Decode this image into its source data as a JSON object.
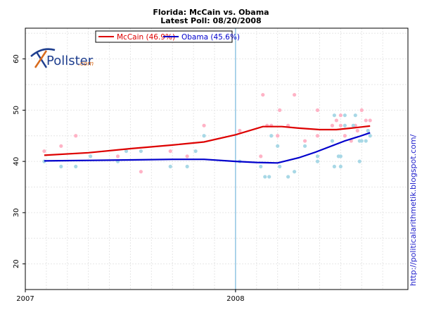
{
  "chart_data": {
    "type": "scatter",
    "title": "Florida: McCain vs. Obama",
    "subtitle": "Latest Poll: 08/20/2008",
    "xlabel": "",
    "ylabel": "",
    "xlim": [
      2007.0,
      2008.82
    ],
    "ylim": [
      15,
      66
    ],
    "yticks": [
      20,
      30,
      40,
      50,
      60
    ],
    "xticks": [
      {
        "value": 2007.0,
        "label": "2007"
      },
      {
        "value": 2008.0,
        "label": "2008"
      }
    ],
    "vlines": [
      2007.0,
      2008.0
    ],
    "grid": true,
    "legend": "top-left",
    "credit": "http://politicalarithmetik.blogspot.com/",
    "logo": {
      "name": "pollster-logo",
      "text": "Pollster",
      "suffix": ".com"
    },
    "series": [
      {
        "name": "McCain (46.9%)",
        "color": "#dd0000",
        "point_color": "#ffb3c6",
        "trend": [
          [
            2007.09,
            41.2
          ],
          [
            2007.3,
            41.7
          ],
          [
            2007.5,
            42.5
          ],
          [
            2007.7,
            43.2
          ],
          [
            2007.85,
            43.8
          ],
          [
            2008.0,
            45.2
          ],
          [
            2008.13,
            46.8
          ],
          [
            2008.22,
            46.8
          ],
          [
            2008.3,
            46.5
          ],
          [
            2008.4,
            46.2
          ],
          [
            2008.48,
            46.2
          ],
          [
            2008.55,
            46.5
          ],
          [
            2008.64,
            46.9
          ]
        ],
        "points": [
          [
            2007.09,
            42
          ],
          [
            2007.17,
            43
          ],
          [
            2007.24,
            45
          ],
          [
            2007.44,
            41
          ],
          [
            2007.55,
            38
          ],
          [
            2007.69,
            42
          ],
          [
            2007.77,
            41
          ],
          [
            2007.85,
            47
          ],
          [
            2008.02,
            46
          ],
          [
            2008.12,
            41
          ],
          [
            2008.13,
            53
          ],
          [
            2008.15,
            47
          ],
          [
            2008.17,
            47
          ],
          [
            2008.2,
            45
          ],
          [
            2008.21,
            50
          ],
          [
            2008.25,
            47
          ],
          [
            2008.28,
            53
          ],
          [
            2008.33,
            44
          ],
          [
            2008.39,
            50
          ],
          [
            2008.39,
            45
          ],
          [
            2008.46,
            47
          ],
          [
            2008.48,
            48
          ],
          [
            2008.5,
            49
          ],
          [
            2008.5,
            47
          ],
          [
            2008.52,
            45
          ],
          [
            2008.55,
            44
          ],
          [
            2008.57,
            47
          ],
          [
            2008.58,
            46
          ],
          [
            2008.6,
            50
          ],
          [
            2008.62,
            48
          ],
          [
            2008.63,
            46
          ],
          [
            2008.64,
            48
          ]
        ]
      },
      {
        "name": "Obama (45.6%)",
        "color": "#0000cc",
        "point_color": "#a8d8e6",
        "trend": [
          [
            2007.09,
            40.1
          ],
          [
            2007.3,
            40.2
          ],
          [
            2007.5,
            40.3
          ],
          [
            2007.7,
            40.4
          ],
          [
            2007.85,
            40.4
          ],
          [
            2008.0,
            40.0
          ],
          [
            2008.1,
            39.8
          ],
          [
            2008.2,
            39.7
          ],
          [
            2008.3,
            40.7
          ],
          [
            2008.38,
            41.8
          ],
          [
            2008.45,
            42.9
          ],
          [
            2008.52,
            44.0
          ],
          [
            2008.59,
            44.9
          ],
          [
            2008.64,
            45.6
          ]
        ],
        "points": [
          [
            2007.09,
            40
          ],
          [
            2007.17,
            39
          ],
          [
            2007.24,
            39
          ],
          [
            2007.31,
            41
          ],
          [
            2007.44,
            40
          ],
          [
            2007.48,
            42
          ],
          [
            2007.55,
            42
          ],
          [
            2007.69,
            39
          ],
          [
            2007.77,
            39
          ],
          [
            2007.81,
            42
          ],
          [
            2007.85,
            45
          ],
          [
            2008.02,
            40
          ],
          [
            2008.12,
            39
          ],
          [
            2008.14,
            37
          ],
          [
            2008.16,
            37
          ],
          [
            2008.17,
            45
          ],
          [
            2008.2,
            43
          ],
          [
            2008.21,
            39
          ],
          [
            2008.25,
            37
          ],
          [
            2008.28,
            38
          ],
          [
            2008.33,
            43
          ],
          [
            2008.39,
            40
          ],
          [
            2008.39,
            41
          ],
          [
            2008.46,
            44
          ],
          [
            2008.47,
            49
          ],
          [
            2008.47,
            39
          ],
          [
            2008.49,
            41
          ],
          [
            2008.5,
            41
          ],
          [
            2008.5,
            39
          ],
          [
            2008.52,
            49
          ],
          [
            2008.52,
            47
          ],
          [
            2008.56,
            47
          ],
          [
            2008.57,
            49
          ],
          [
            2008.59,
            40
          ],
          [
            2008.59,
            44
          ],
          [
            2008.6,
            44
          ],
          [
            2008.62,
            44
          ],
          [
            2008.63,
            46
          ],
          [
            2008.64,
            45
          ]
        ]
      }
    ]
  }
}
